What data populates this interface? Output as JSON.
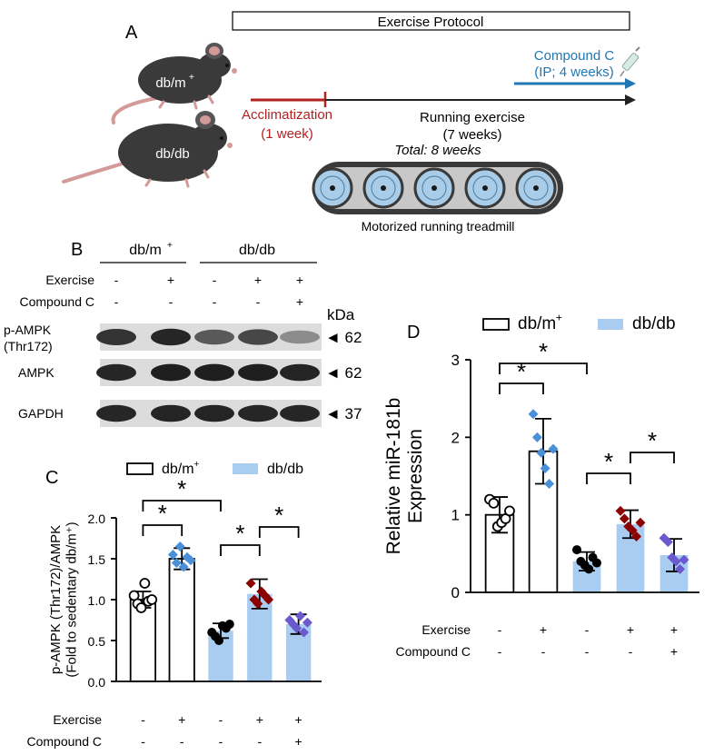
{
  "panel_a": {
    "label": "A",
    "protocol_header": "Exercise Protocol",
    "mouse_labels": [
      "db/m",
      "+",
      "db/db"
    ],
    "acclimatization": [
      "Acclimatization",
      "(1 week)"
    ],
    "running": [
      "Running exercise",
      "(7 weeks)"
    ],
    "total": "Total: 8 weeks",
    "compound_c": [
      "Compound C",
      "(IP; 4 weeks)"
    ],
    "treadmill": "Motorized running treadmill",
    "colors": {
      "acclimatization": "#b22222",
      "compound": "#1f77b4",
      "mouse": "#3a3a3a",
      "tail": "#d39a98",
      "treadmill_wheel": "#a9cde8"
    }
  },
  "panel_b": {
    "label": "B",
    "groups": [
      "db/m",
      "+",
      "db/db"
    ],
    "row_labels": [
      "Exercise",
      "Compound C"
    ],
    "exercise": [
      "-",
      "+",
      "-",
      "+",
      "+"
    ],
    "compound_c": [
      "-",
      "-",
      "-",
      "-",
      "+"
    ],
    "kda": "kDa",
    "blots": [
      {
        "label": [
          "p-AMPK",
          "(Thr172)"
        ],
        "size": "◄ 62",
        "intensity": [
          0.8,
          0.85,
          0.65,
          0.72,
          0.45
        ]
      },
      {
        "label": [
          "AMPK"
        ],
        "size": "◄ 62",
        "intensity": [
          0.85,
          0.88,
          0.88,
          0.88,
          0.86
        ]
      },
      {
        "label": [
          "GAPDH"
        ],
        "size": "◄ 37",
        "intensity": [
          0.85,
          0.86,
          0.86,
          0.85,
          0.85
        ]
      }
    ]
  },
  "panel_c": {
    "label": "C"
  },
  "panel_d": {
    "label": "D"
  },
  "chart_data": [
    {
      "type": "bar",
      "panel": "C",
      "ylabel": "p-AMPK (Thr172)/AMPK (Fold to sedentary db/m+)",
      "ylim": [
        0,
        2.0
      ],
      "yticks": [
        "0.0",
        "0.5",
        "1.0",
        "1.5",
        "2.0"
      ],
      "legend": [
        "db/m",
        "+",
        "db/db"
      ],
      "row_labels": [
        "Exercise",
        "Compound C"
      ],
      "exercise": [
        "-",
        "+",
        "-",
        "+",
        "+"
      ],
      "compound_c": [
        "-",
        "-",
        "-",
        "-",
        "+"
      ],
      "groups": [
        "db/m+",
        "db/m+",
        "db/db",
        "db/db",
        "db/db"
      ],
      "values": [
        1.0,
        1.5,
        0.62,
        1.07,
        0.7
      ],
      "errors": [
        0.1,
        0.13,
        0.09,
        0.18,
        0.12
      ],
      "points": [
        [
          1.05,
          0.95,
          0.9,
          1.2,
          0.98,
          1.0
        ],
        [
          1.55,
          1.45,
          1.65,
          1.4,
          1.52,
          1.48
        ],
        [
          0.6,
          0.55,
          0.5,
          0.68,
          0.65,
          0.7
        ],
        [
          1.2,
          1.0,
          0.95,
          1.1,
          1.05,
          1.0
        ],
        [
          0.75,
          0.7,
          0.65,
          0.8,
          0.6,
          0.72
        ]
      ],
      "point_colors": [
        "#ffffff",
        "#4a90d9",
        "#000000",
        "#8b0000",
        "#6a5acd"
      ],
      "significance": [
        {
          "pair": [
            0,
            1
          ],
          "label": "*"
        },
        {
          "pair": [
            0,
            2
          ],
          "label": "*"
        },
        {
          "pair": [
            2,
            3
          ],
          "label": "*"
        },
        {
          "pair": [
            3,
            4
          ],
          "label": "*"
        }
      ]
    },
    {
      "type": "bar",
      "panel": "D",
      "ylabel": "Relative miR-181b Expression",
      "ylim": [
        0,
        3
      ],
      "yticks": [
        "0",
        "1",
        "2",
        "3"
      ],
      "legend": [
        "db/m",
        "+",
        "db/db"
      ],
      "row_labels": [
        "Exercise",
        "Compound C"
      ],
      "exercise": [
        "-",
        "+",
        "-",
        "+",
        "+"
      ],
      "compound_c": [
        "-",
        "-",
        "-",
        "-",
        "+"
      ],
      "groups": [
        "db/m+",
        "db/m+",
        "db/db",
        "db/db",
        "db/db"
      ],
      "values": [
        1.0,
        1.82,
        0.4,
        0.88,
        0.48
      ],
      "errors": [
        0.23,
        0.42,
        0.12,
        0.18,
        0.21
      ],
      "points": [
        [
          1.2,
          1.15,
          0.85,
          0.9,
          0.95,
          1.05
        ],
        [
          2.3,
          2.0,
          1.8,
          1.6,
          1.4,
          1.85
        ],
        [
          0.55,
          0.4,
          0.35,
          0.3,
          0.45,
          0.38
        ],
        [
          1.05,
          0.95,
          0.85,
          0.8,
          0.72,
          0.9
        ],
        [
          0.7,
          0.65,
          0.45,
          0.4,
          0.3,
          0.42
        ]
      ],
      "point_colors": [
        "#ffffff",
        "#4a90d9",
        "#000000",
        "#8b0000",
        "#6a5acd"
      ],
      "significance": [
        {
          "pair": [
            0,
            1
          ],
          "label": "*"
        },
        {
          "pair": [
            0,
            2
          ],
          "label": "*"
        },
        {
          "pair": [
            2,
            3
          ],
          "label": "*"
        },
        {
          "pair": [
            3,
            4
          ],
          "label": "*"
        }
      ]
    }
  ],
  "colors": {
    "db_db_bar": "#a9cdf0",
    "db_m_bar": "#ffffff"
  }
}
